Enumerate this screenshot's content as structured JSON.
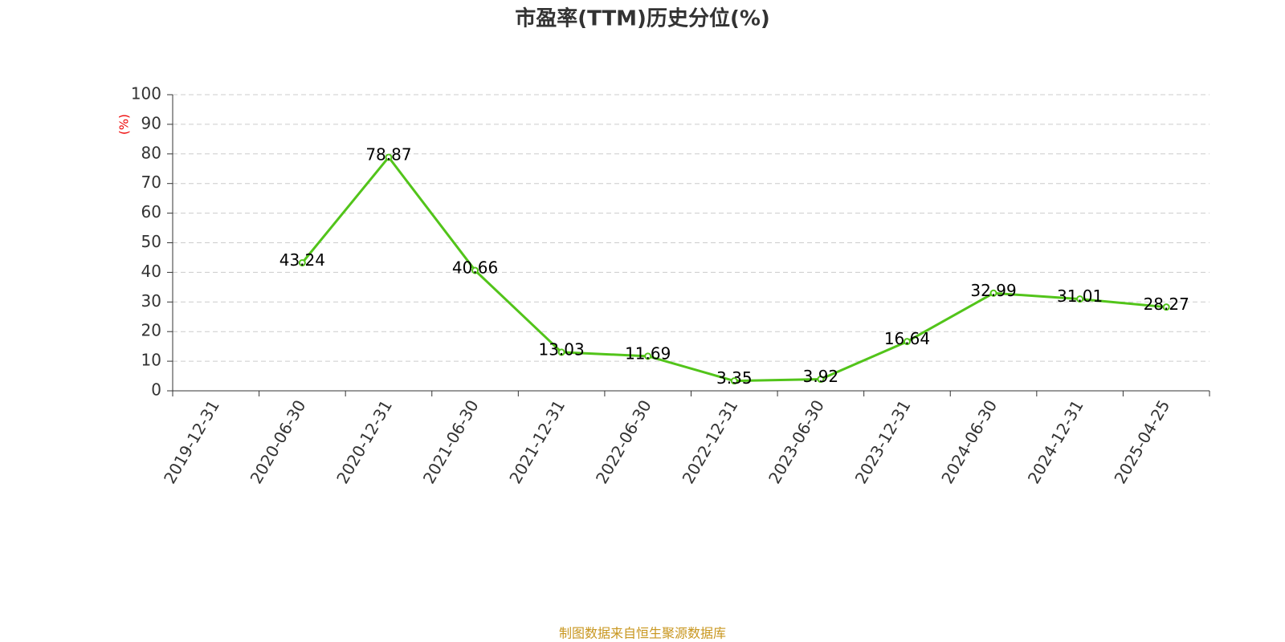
{
  "chart_data": {
    "type": "line",
    "title": "市盈率(TTM)历史分位(%)",
    "y_label": "(%)",
    "categories": [
      "2019-12-31",
      "2020-06-30",
      "2020-12-31",
      "2021-06-30",
      "2021-12-31",
      "2022-06-30",
      "2022-12-31",
      "2023-06-30",
      "2023-12-31",
      "2024-06-30",
      "2024-12-31",
      "2025-04-25"
    ],
    "values": [
      null,
      43.24,
      78.87,
      40.66,
      13.03,
      11.69,
      3.35,
      3.92,
      16.64,
      32.99,
      31.01,
      28.27
    ],
    "color": "#52c41a",
    "ylim": [
      0,
      100
    ],
    "yticks": [
      0,
      10,
      20,
      30,
      40,
      50,
      60,
      70,
      80,
      90,
      100
    ],
    "grid": true,
    "source": "制图数据来自恒生聚源数据库"
  }
}
